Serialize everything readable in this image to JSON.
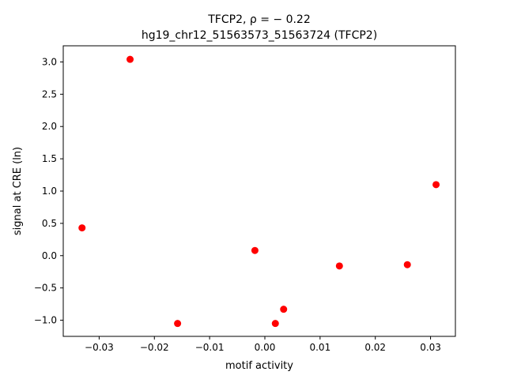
{
  "chart_data": {
    "type": "scatter",
    "title_line1": "TFCP2, ρ = − 0.22",
    "title_line2": "hg19_chr12_51563573_51563724 (TFCP2)",
    "xlabel": "motif activity",
    "ylabel": "signal at CRE (ln)",
    "xlim": [
      -0.0365,
      0.0345
    ],
    "ylim": [
      -1.25,
      3.25
    ],
    "x_ticks": [
      -0.03,
      -0.02,
      -0.01,
      0.0,
      0.01,
      0.02,
      0.03
    ],
    "x_tick_labels": [
      "−0.03",
      "−0.02",
      "−0.01",
      "0.00",
      "0.01",
      "0.02",
      "0.03"
    ],
    "y_ticks": [
      -1.0,
      -0.5,
      0.0,
      0.5,
      1.0,
      1.5,
      2.0,
      2.5,
      3.0
    ],
    "y_tick_labels": [
      "−1.0",
      "−0.5",
      "0.0",
      "0.5",
      "1.0",
      "1.5",
      "2.0",
      "2.5",
      "3.0"
    ],
    "grid": false,
    "marker_color": "#ff0000",
    "points": [
      {
        "x": -0.0331,
        "y": 0.43
      },
      {
        "x": -0.0244,
        "y": 3.04
      },
      {
        "x": -0.0158,
        "y": -1.05
      },
      {
        "x": -0.0018,
        "y": 0.08
      },
      {
        "x": 0.0019,
        "y": -1.05
      },
      {
        "x": 0.0034,
        "y": -0.83
      },
      {
        "x": 0.0135,
        "y": -0.16
      },
      {
        "x": 0.0258,
        "y": -0.14
      },
      {
        "x": 0.031,
        "y": 1.1
      }
    ]
  }
}
